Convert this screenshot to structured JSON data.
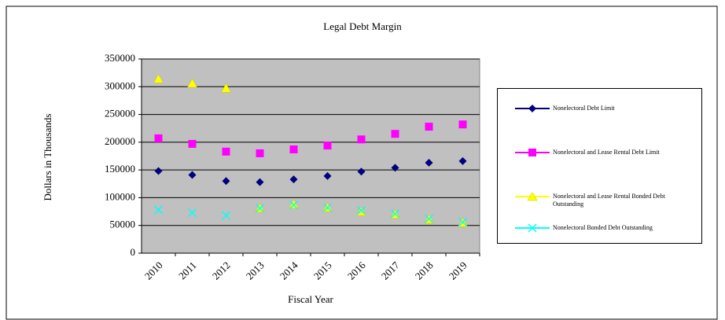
{
  "chart_data": {
    "type": "scatter",
    "title": "Legal Debt Margin",
    "x_label": "Fiscal Year",
    "y_label": "Dollars in Thousands",
    "categories": [
      "2010",
      "2011",
      "2012",
      "2013",
      "2014",
      "2015",
      "2016",
      "2017",
      "2018",
      "2019"
    ],
    "series": [
      {
        "name": "Nonelectoral Debt Limit",
        "color": "#000080",
        "marker": "diamond",
        "values": [
          148000,
          141000,
          130000,
          128000,
          133000,
          139000,
          147000,
          154000,
          163000,
          166000
        ]
      },
      {
        "name": "Nonelectoral and Lease Rental Debt Limit",
        "color": "#ff00ff",
        "marker": "square",
        "values": [
          207000,
          197000,
          183000,
          180000,
          187000,
          194000,
          205000,
          215000,
          228000,
          232000
        ]
      },
      {
        "name": "Nonelectoral and Lease Rental Bonded Debt Outstanding",
        "color": "#ffff00",
        "marker": "triangle",
        "values": [
          314000,
          306000,
          297000,
          81000,
          88000,
          82000,
          75000,
          70000,
          61000,
          55000
        ]
      },
      {
        "name": "Nonelectoral Bonded Debt Outstanding",
        "color": "#00ffff",
        "marker": "x",
        "values": [
          78000,
          73000,
          68000,
          81000,
          87000,
          82000,
          77000,
          71000,
          62000,
          56000
        ]
      }
    ],
    "ylim": [
      0,
      350000
    ],
    "yticks": [
      0,
      50000,
      100000,
      150000,
      200000,
      250000,
      300000,
      350000
    ],
    "grid": true,
    "plot_background": "#c0c0c0",
    "legend": "right"
  }
}
